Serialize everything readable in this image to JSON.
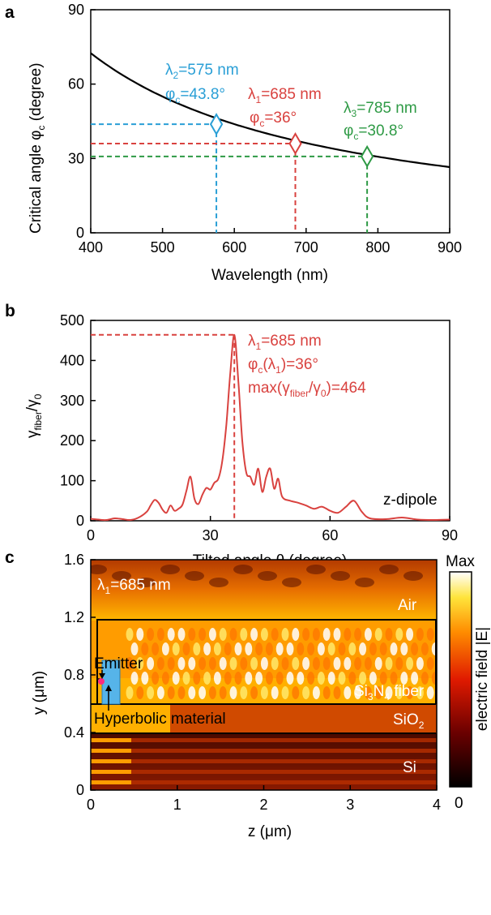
{
  "colors": {
    "blue": "#2a9fd6",
    "red": "#d9423f",
    "green": "#2e9a45",
    "curve": "#000000"
  },
  "panel_a": {
    "label": "a",
    "ylabel_main": "Critical angle φ",
    "ylabel_sub": "c",
    "ylabel_tail": " (degree)",
    "xlabel": "Wavelength (nm)",
    "annotations": [
      {
        "line1_pre": "λ",
        "line1_sub": "2",
        "line1_post": "=575 nm",
        "line2_pre": "φ",
        "line2_sub": "c",
        "line2_post": "=43.8°",
        "color": "blue"
      },
      {
        "line1_pre": "λ",
        "line1_sub": "1",
        "line1_post": "=685 nm",
        "line2_pre": "φ",
        "line2_sub": "c",
        "line2_post": "=36°",
        "color": "red"
      },
      {
        "line1_pre": "λ",
        "line1_sub": "3",
        "line1_post": "=785 nm",
        "line2_pre": "φ",
        "line2_sub": "c",
        "line2_post": "=30.8°",
        "color": "green"
      }
    ]
  },
  "panel_b": {
    "label": "b",
    "ylabel_pre": "γ",
    "ylabel_sub": "fiber",
    "ylabel_mid": "/γ",
    "ylabel_sub2": "0",
    "xlabel": "Tilted angle θ (degree)",
    "legend": "z-dipole",
    "annot": [
      {
        "pre": "λ",
        "sub": "1",
        "post": "=685 nm"
      },
      {
        "pre": "φ",
        "sub": "c",
        "post": "(λ",
        "sub2": "1",
        "post2": ")=36°"
      },
      {
        "pre": "max(γ",
        "sub": "fiber",
        "post": "/γ",
        "sub2": "0",
        "post2": ")=464"
      }
    ]
  },
  "panel_c": {
    "label": "c",
    "ylabel": "y (μm)",
    "xlabel": "z (μm)",
    "wavelength_pre": "λ",
    "wavelength_sub": "1",
    "wavelength_post": "=685 nm",
    "air": "Air",
    "fiber_pre": "Si",
    "fiber_sub1": "3",
    "fiber_mid": "N",
    "fiber_sub2": "4",
    "fiber_post": " fiber",
    "sio2_pre": "SiO",
    "sio2_sub": "2",
    "si": "Si",
    "emitter": "Emitter",
    "hyperbolic": "Hyperbolic material",
    "colorbar_max": "Max",
    "colorbar_min": "0",
    "colorbar_label": "electric field |E|",
    "xticks": [
      "0",
      "1",
      "2",
      "3",
      "4"
    ],
    "yticks": [
      "0",
      "0.4",
      "0.8",
      "1.2",
      "1.6"
    ]
  },
  "chart_data": [
    {
      "type": "line",
      "title": "",
      "xlabel": "Wavelength (nm)",
      "ylabel": "Critical angle φc (degree)",
      "xlim": [
        400,
        900
      ],
      "ylim": [
        0,
        90
      ],
      "xticks": [
        400,
        500,
        600,
        700,
        800,
        900
      ],
      "yticks": [
        0,
        30,
        60,
        90
      ],
      "series": [
        {
          "x": [
            400,
            450,
            500,
            550,
            575,
            600,
            650,
            685,
            700,
            750,
            785,
            800,
            850,
            900
          ],
          "y": [
            72.5,
            63.5,
            56.3,
            50.0,
            43.8,
            42.5,
            38.5,
            36.0,
            35.2,
            32.6,
            30.8,
            30.1,
            28.1,
            26.6
          ]
        }
      ],
      "markers": [
        {
          "x": 575,
          "y": 43.8,
          "color": "blue"
        },
        {
          "x": 685,
          "y": 36.0,
          "color": "red"
        },
        {
          "x": 785,
          "y": 30.8,
          "color": "green"
        }
      ]
    },
    {
      "type": "line",
      "title": "",
      "xlabel": "Tilted angle θ (degree)",
      "ylabel": "γfiber/γ0",
      "xlim": [
        0,
        90
      ],
      "ylim": [
        0,
        500
      ],
      "xticks": [
        0,
        30,
        60,
        90
      ],
      "yticks": [
        0,
        100,
        200,
        300,
        400,
        500
      ],
      "peak": {
        "x": 36,
        "y": 464
      },
      "series": [
        {
          "name": "z-dipole",
          "x": [
            0,
            2,
            4,
            6,
            8,
            10,
            12,
            14,
            15,
            16,
            17,
            18,
            19,
            20,
            21,
            22,
            23,
            24,
            25,
            26,
            27,
            28,
            29,
            30,
            31,
            32,
            33,
            34,
            35,
            36,
            37,
            38,
            39,
            40,
            41,
            42,
            43,
            44,
            45,
            46,
            47,
            48,
            50,
            52,
            54,
            56,
            58,
            60,
            62,
            64,
            66,
            68,
            70,
            74,
            78,
            82,
            86,
            90
          ],
          "y": [
            5,
            3,
            2,
            6,
            4,
            2,
            8,
            22,
            38,
            52,
            45,
            28,
            20,
            38,
            25,
            30,
            40,
            75,
            110,
            55,
            42,
            65,
            82,
            78,
            95,
            105,
            150,
            240,
            370,
            464,
            350,
            200,
            120,
            110,
            90,
            130,
            72,
            110,
            130,
            80,
            105,
            60,
            50,
            45,
            38,
            30,
            35,
            25,
            20,
            35,
            50,
            22,
            6,
            4,
            8,
            3,
            2,
            3
          ]
        }
      ]
    },
    {
      "type": "heatmap",
      "title": "",
      "xlabel": "z (μm)",
      "ylabel": "y (μm)",
      "xlim": [
        0,
        4
      ],
      "ylim": [
        0,
        1.6
      ],
      "xticks": [
        0,
        1,
        2,
        3,
        4
      ],
      "yticks": [
        0,
        0.4,
        0.8,
        1.2,
        1.6
      ],
      "colorbar": {
        "min": "0",
        "max": "Max",
        "label": "electric field |E|"
      },
      "regions": [
        {
          "name": "Air",
          "y": [
            1.2,
            1.6
          ]
        },
        {
          "name": "Si3N4 fiber",
          "z": [
            0.3,
            4
          ],
          "y": [
            0.6,
            1.2
          ]
        },
        {
          "name": "SiO2",
          "y": [
            0.4,
            0.6
          ]
        },
        {
          "name": "Si",
          "y": [
            0,
            0.4
          ]
        },
        {
          "name": "Hyperbolic material",
          "z": [
            0.1,
            0.3
          ],
          "y": [
            0.6,
            0.85
          ]
        }
      ]
    }
  ]
}
